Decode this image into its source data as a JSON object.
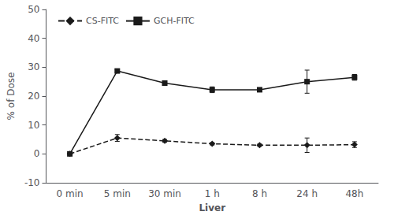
{
  "chart_data": {
    "type": "line",
    "xlabel": "Liver",
    "ylabel": "% of Dose",
    "categories": [
      "0 min",
      "5 min",
      "30 min",
      "1 h",
      "8 h",
      "24 h",
      "48h"
    ],
    "series": [
      {
        "name": "CS-FITC",
        "color": "#1a1a1a",
        "marker": "diamond",
        "line_style": "dashed",
        "values": [
          0.0,
          5.5,
          4.5,
          3.5,
          3.0,
          3.0,
          3.2
        ],
        "errors": [
          0.0,
          1.2,
          0.5,
          0.4,
          0.4,
          2.5,
          1.0
        ]
      },
      {
        "name": "GCH-FITC",
        "color": "#1a1a1a",
        "marker": "square",
        "line_style": "solid",
        "values": [
          0.0,
          28.7,
          24.5,
          22.2,
          22.2,
          25.0,
          26.5
        ],
        "errors": [
          0.0,
          0.5,
          0.8,
          1.0,
          0.5,
          4.0,
          1.0
        ]
      }
    ],
    "ylim": [
      -10,
      50
    ],
    "yticks": [
      -10,
      0,
      10,
      20,
      30,
      40,
      50
    ],
    "grid": false,
    "legend": "upper left"
  }
}
